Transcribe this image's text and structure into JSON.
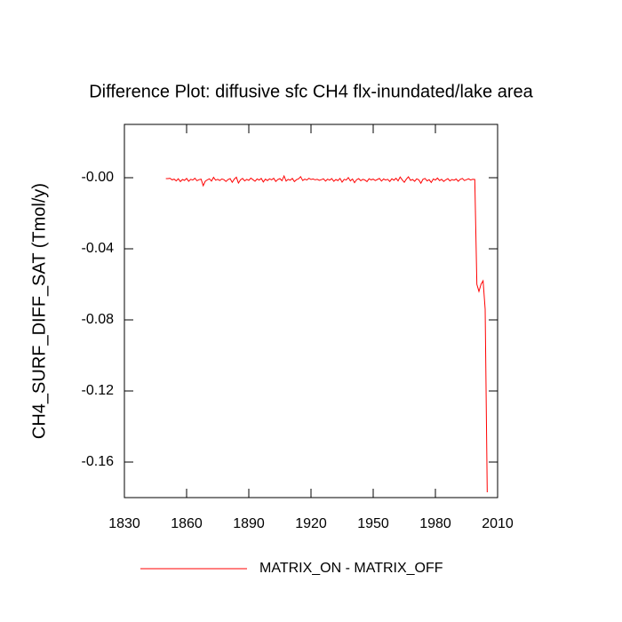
{
  "chart_data": {
    "type": "line",
    "title": "Difference Plot: diffusive sfc CH4 flx-inundated/lake area",
    "y_label": "CH4_SURF_DIFF_SAT  (Tmol/y)",
    "xlim": [
      1830,
      2010
    ],
    "xticks": [
      1830,
      1860,
      1890,
      1920,
      1950,
      1980,
      2010
    ],
    "ylim": [
      -0.18,
      0.03
    ],
    "yticks": [
      {
        "value": 0,
        "label": "-0.00"
      },
      -0.04,
      -0.08,
      -0.12,
      -0.16
    ],
    "x": [
      1850,
      1851,
      1852,
      1853,
      1854,
      1855,
      1856,
      1857,
      1858,
      1859,
      1860,
      1861,
      1862,
      1863,
      1864,
      1865,
      1866,
      1867,
      1868,
      1869,
      1870,
      1871,
      1872,
      1873,
      1874,
      1875,
      1876,
      1877,
      1878,
      1879,
      1880,
      1881,
      1882,
      1883,
      1884,
      1885,
      1886,
      1887,
      1888,
      1889,
      1890,
      1891,
      1892,
      1893,
      1894,
      1895,
      1896,
      1897,
      1898,
      1899,
      1900,
      1901,
      1902,
      1903,
      1904,
      1905,
      1906,
      1907,
      1908,
      1909,
      1910,
      1911,
      1912,
      1913,
      1914,
      1915,
      1916,
      1917,
      1918,
      1919,
      1920,
      1921,
      1922,
      1923,
      1924,
      1925,
      1926,
      1927,
      1928,
      1929,
      1930,
      1931,
      1932,
      1933,
      1934,
      1935,
      1936,
      1937,
      1938,
      1939,
      1940,
      1941,
      1942,
      1943,
      1944,
      1945,
      1946,
      1947,
      1948,
      1949,
      1950,
      1951,
      1952,
      1953,
      1954,
      1955,
      1956,
      1957,
      1958,
      1959,
      1960,
      1961,
      1962,
      1963,
      1964,
      1965,
      1966,
      1967,
      1968,
      1969,
      1970,
      1971,
      1972,
      1973,
      1974,
      1975,
      1976,
      1977,
      1978,
      1979,
      1980,
      1981,
      1982,
      1983,
      1984,
      1985,
      1986,
      1987,
      1988,
      1989,
      1990,
      1991,
      1992,
      1993,
      1994,
      1995,
      1996,
      1997,
      1998,
      1999,
      2000,
      2001,
      2002,
      2003,
      2004,
      2005
    ],
    "series": [
      {
        "name": "MATRIX_ON - MATRIX_OFF",
        "color": "#ff0000",
        "values": [
          -0.0005,
          -0.0005,
          -0.0003,
          -0.0012,
          -0.0008,
          -0.0018,
          -0.0006,
          -0.0022,
          -0.001,
          -0.0015,
          -0.0004,
          -0.002,
          -0.0009,
          -0.0013,
          -0.0003,
          -0.0017,
          -0.0011,
          -0.0008,
          -0.0045,
          -0.002,
          -0.0012,
          -0.0006,
          -0.0019,
          0.0002,
          -0.0014,
          -0.0009,
          -0.0016,
          -0.0007,
          -0.0011,
          -0.0021,
          -0.001,
          -0.0005,
          -0.0026,
          -0.0008,
          0.0003,
          -0.003,
          -0.0012,
          -0.0004,
          -0.0018,
          -0.0009,
          -0.0015,
          -0.0002,
          -0.0011,
          -0.002,
          -0.0007,
          -0.0013,
          -0.0004,
          -0.0024,
          -0.0008,
          -0.0016,
          -0.0006,
          -0.0012,
          -0.0003,
          -0.0021,
          -0.001,
          -0.0005,
          -0.0017,
          0.001,
          -0.0019,
          -0.0009,
          -0.0014,
          -0.0004,
          -0.0022,
          -0.0011,
          -0.0006,
          0.0006,
          -0.0016,
          -0.0008,
          -0.0013,
          -0.0003,
          -0.001,
          -0.0007,
          -0.0012,
          -0.0009,
          -0.0015,
          -0.0011,
          -0.0006,
          -0.0019,
          -0.0008,
          -0.0014,
          -0.0005,
          -0.002,
          -0.001,
          -0.0016,
          -0.0004,
          -0.0025,
          -0.0009,
          -0.0013,
          0.0001,
          -0.0018,
          -0.0007,
          -0.0028,
          -0.0011,
          -0.0005,
          -0.0017,
          -0.0009,
          -0.0013,
          -0.0022,
          -0.0006,
          -0.0012,
          -0.0008,
          -0.0016,
          -0.001,
          -0.0004,
          -0.0019,
          -0.0007,
          -0.0013,
          -0.0009,
          -0.0021,
          -0.0006,
          -0.0014,
          -0.0003,
          -0.0018,
          0.0004,
          -0.0012,
          -0.0026,
          -0.0008,
          0.0005,
          -0.0015,
          -0.001,
          -0.002,
          -0.0006,
          -0.0012,
          -0.0031,
          -0.0009,
          -0.0004,
          -0.0018,
          -0.0011,
          -0.0027,
          -0.0007,
          -0.0013,
          -0.0002,
          -0.0016,
          -0.0009,
          -0.0021,
          -0.0012,
          -0.0005,
          -0.0018,
          -0.001,
          -0.0014,
          -0.0007,
          -0.002,
          -0.0009,
          -0.0004,
          -0.0016,
          -0.0011,
          -0.0006,
          -0.0013,
          -0.0009,
          -0.001,
          -0.06,
          -0.064,
          -0.06,
          -0.058,
          -0.074,
          -0.177
        ]
      }
    ]
  }
}
